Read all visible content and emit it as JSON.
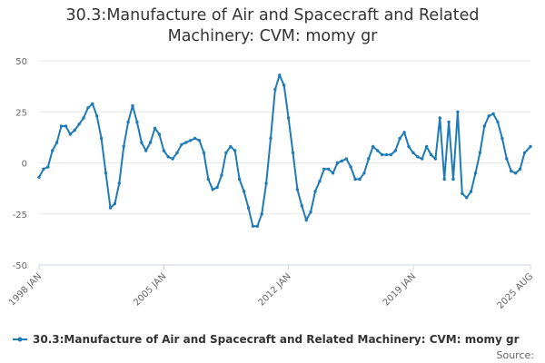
{
  "chart_data": {
    "type": "line",
    "title_line1": "30.3:Manufacture of Air and Spacecraft and Related",
    "title_line2": "Machinery: CVM: momy gr",
    "xlabel": "",
    "ylabel": "",
    "ylim": [
      -50,
      50
    ],
    "yticks": [
      "50",
      "25",
      "0",
      "-25",
      "-50"
    ],
    "xticks": [
      "1998 JAN",
      "2005 JAN",
      "2012 JAN",
      "2019 JAN",
      "2025 AUG"
    ],
    "xlim": [
      "1998-01",
      "2025-08"
    ],
    "grid": "horizontal",
    "legend_position": "bottom-left",
    "series": [
      {
        "name": "30.3:Manufacture of Air and Spacecraft and Related Machinery: CVM: momy gr",
        "color": "#1f7ab8",
        "points": [
          [
            "1998-01",
            -7
          ],
          [
            "1998-04",
            -3
          ],
          [
            "1998-07",
            -2
          ],
          [
            "1998-10",
            6
          ],
          [
            "1999-01",
            10
          ],
          [
            "1999-04",
            18
          ],
          [
            "1999-07",
            18
          ],
          [
            "1999-10",
            14
          ],
          [
            "2000-01",
            16
          ],
          [
            "2000-04",
            19
          ],
          [
            "2000-07",
            22
          ],
          [
            "2000-10",
            27
          ],
          [
            "2001-01",
            29
          ],
          [
            "2001-04",
            23
          ],
          [
            "2001-07",
            12
          ],
          [
            "2001-10",
            -5
          ],
          [
            "2002-01",
            -22
          ],
          [
            "2002-04",
            -20
          ],
          [
            "2002-07",
            -10
          ],
          [
            "2002-10",
            8
          ],
          [
            "2003-01",
            20
          ],
          [
            "2003-04",
            28
          ],
          [
            "2003-07",
            20
          ],
          [
            "2003-10",
            10
          ],
          [
            "2004-01",
            6
          ],
          [
            "2004-04",
            10
          ],
          [
            "2004-07",
            17
          ],
          [
            "2004-10",
            14
          ],
          [
            "2005-01",
            6
          ],
          [
            "2005-04",
            3
          ],
          [
            "2005-07",
            2
          ],
          [
            "2005-10",
            5
          ],
          [
            "2006-01",
            9
          ],
          [
            "2006-04",
            10
          ],
          [
            "2006-07",
            11
          ],
          [
            "2006-10",
            12
          ],
          [
            "2007-01",
            11
          ],
          [
            "2007-04",
            5
          ],
          [
            "2007-07",
            -8
          ],
          [
            "2007-10",
            -13
          ],
          [
            "2008-01",
            -12
          ],
          [
            "2008-04",
            -6
          ],
          [
            "2008-07",
            5
          ],
          [
            "2008-10",
            8
          ],
          [
            "2009-01",
            6
          ],
          [
            "2009-04",
            -8
          ],
          [
            "2009-07",
            -14
          ],
          [
            "2009-10",
            -22
          ],
          [
            "2010-01",
            -31
          ],
          [
            "2010-04",
            -31
          ],
          [
            "2010-07",
            -25
          ],
          [
            "2010-10",
            -10
          ],
          [
            "2011-01",
            12
          ],
          [
            "2011-04",
            36
          ],
          [
            "2011-07",
            43
          ],
          [
            "2011-10",
            38
          ],
          [
            "2012-01",
            22
          ],
          [
            "2012-04",
            5
          ],
          [
            "2012-07",
            -13
          ],
          [
            "2012-10",
            -21
          ],
          [
            "2013-01",
            -28
          ],
          [
            "2013-04",
            -24
          ],
          [
            "2013-07",
            -14
          ],
          [
            "2013-10",
            -9
          ],
          [
            "2014-01",
            -3
          ],
          [
            "2014-04",
            -3
          ],
          [
            "2014-07",
            -5
          ],
          [
            "2014-10",
            0
          ],
          [
            "2015-01",
            1
          ],
          [
            "2015-04",
            2
          ],
          [
            "2015-07",
            -2
          ],
          [
            "2015-10",
            -8
          ],
          [
            "2016-01",
            -8
          ],
          [
            "2016-04",
            -5
          ],
          [
            "2016-07",
            2
          ],
          [
            "2016-10",
            8
          ],
          [
            "2017-01",
            6
          ],
          [
            "2017-04",
            4
          ],
          [
            "2017-07",
            4
          ],
          [
            "2017-10",
            4
          ],
          [
            "2018-01",
            6
          ],
          [
            "2018-04",
            12
          ],
          [
            "2018-07",
            15
          ],
          [
            "2018-10",
            8
          ],
          [
            "2019-01",
            5
          ],
          [
            "2019-04",
            3
          ],
          [
            "2019-07",
            2
          ],
          [
            "2019-10",
            8
          ],
          [
            "2020-01",
            4
          ],
          [
            "2020-04",
            2
          ],
          [
            "2020-07",
            22
          ],
          [
            "2020-10",
            -8
          ],
          [
            "2021-01",
            20
          ],
          [
            "2021-04",
            -8
          ],
          [
            "2021-07",
            25
          ],
          [
            "2021-10",
            -15
          ],
          [
            "2022-01",
            -17
          ],
          [
            "2022-04",
            -14
          ],
          [
            "2022-07",
            -5
          ],
          [
            "2022-10",
            5
          ],
          [
            "2023-01",
            18
          ],
          [
            "2023-04",
            23
          ],
          [
            "2023-07",
            24
          ],
          [
            "2023-10",
            20
          ],
          [
            "2024-01",
            12
          ],
          [
            "2024-04",
            2
          ],
          [
            "2024-07",
            -4
          ],
          [
            "2024-10",
            -5
          ],
          [
            "2025-01",
            -3
          ],
          [
            "2025-04",
            5
          ],
          [
            "2025-08",
            8
          ]
        ]
      }
    ],
    "legend_label": "30.3:Manufacture of Air and Spacecraft and Related Machinery: CVM: momy gr",
    "source_label": "Source:"
  }
}
